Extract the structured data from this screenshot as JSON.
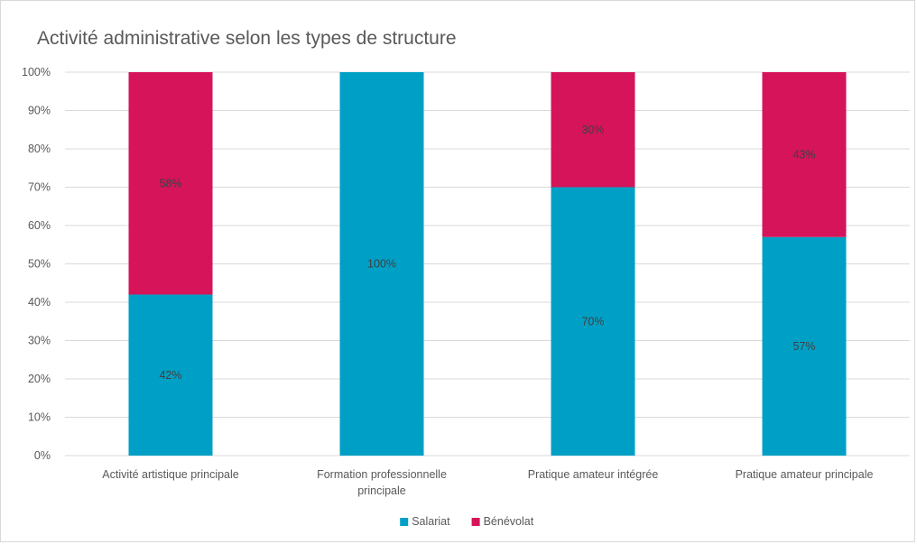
{
  "chart_data": {
    "type": "bar",
    "stacked": true,
    "title": "Activité administrative selon les types de structure",
    "categories": [
      [
        "Activité artistique principale"
      ],
      [
        "Formation professionnelle",
        "principale"
      ],
      [
        "Pratique amateur intégrée"
      ],
      [
        "Pratique amateur principale"
      ]
    ],
    "series": [
      {
        "name": "Salariat",
        "color": "#00a0c6",
        "values": [
          42,
          100,
          70,
          57
        ],
        "labels": [
          "42%",
          "100%",
          "70%",
          "57%"
        ]
      },
      {
        "name": "Bénévolat",
        "color": "#d5145a",
        "values": [
          58,
          0,
          30,
          43
        ],
        "labels": [
          "58%",
          "",
          "30%",
          "43%"
        ]
      }
    ],
    "ylim": [
      0,
      100
    ],
    "yticks": [
      0,
      10,
      20,
      30,
      40,
      50,
      60,
      70,
      80,
      90,
      100
    ],
    "ytick_labels": [
      "0%",
      "10%",
      "20%",
      "30%",
      "40%",
      "50%",
      "60%",
      "70%",
      "80%",
      "90%",
      "100%"
    ],
    "grid": true,
    "legend": "bottom",
    "gridline_color": "#d9d9d9"
  }
}
